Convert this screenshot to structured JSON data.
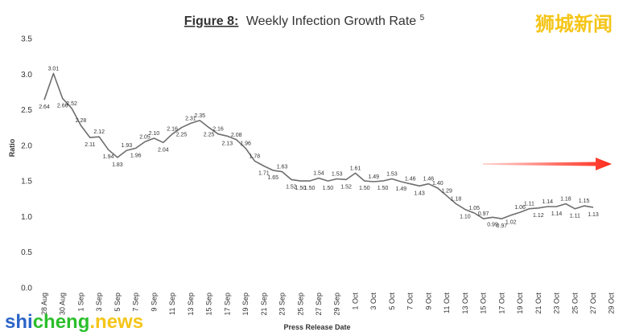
{
  "chart_data": {
    "type": "line",
    "title_prefix": "Figure 8:",
    "title_main": "Weekly Infection Growth Rate",
    "title_superscript": "5",
    "xlabel": "Press Release Date",
    "ylabel": "Ratio",
    "ylim": [
      0,
      3.5
    ],
    "yticks": [
      "0.0",
      "0.5",
      "1.0",
      "1.5",
      "2.0",
      "2.5",
      "3.0",
      "3.5"
    ],
    "x_tick_labels": [
      "28 Aug",
      "30 Aug",
      "1 Sep",
      "3 Sep",
      "5 Sep",
      "7 Sep",
      "9 Sep",
      "11 Sep",
      "13 Sep",
      "15 Sep",
      "17 Sep",
      "19 Sep",
      "21 Sep",
      "23 Sep",
      "25 Sep",
      "27 Sep",
      "29 Sep",
      "1 Oct",
      "3 Oct",
      "5 Oct",
      "7 Oct",
      "9 Oct",
      "11 Oct",
      "13 Oct",
      "15 Oct",
      "17 Oct",
      "19 Oct",
      "21 Oct",
      "23 Oct",
      "25 Oct",
      "27 Oct",
      "29 Oct"
    ],
    "x_start_date": "2021-08-28",
    "values": [
      2.64,
      3.01,
      2.66,
      2.52,
      2.28,
      2.11,
      2.12,
      1.94,
      1.83,
      1.93,
      1.96,
      2.05,
      2.1,
      2.04,
      2.16,
      2.25,
      2.31,
      2.35,
      2.25,
      2.16,
      2.13,
      2.08,
      1.96,
      1.78,
      1.71,
      1.65,
      1.63,
      1.52,
      1.5,
      1.5,
      1.54,
      1.5,
      1.53,
      1.52,
      1.61,
      1.5,
      1.49,
      1.5,
      1.53,
      1.49,
      1.46,
      1.43,
      1.46,
      1.4,
      1.29,
      1.18,
      1.1,
      1.05,
      0.97,
      0.99,
      0.97,
      1.02,
      1.06,
      1.11,
      1.12,
      1.14,
      1.14,
      1.18,
      1.11,
      1.15,
      1.13
    ],
    "data_labels": [
      "2.64",
      "3.01",
      "2.66",
      "2.52",
      "2.28",
      "2.11",
      "2.12",
      "1.94",
      "1.83",
      "1.93",
      "1.96",
      "2.05",
      "2.10",
      "2.04",
      "2.16",
      "2.25",
      "2.31",
      "2.35",
      "2.25",
      "2.16",
      "2.13",
      "2.08",
      "1.96",
      "1.78",
      "1.71",
      "1.65",
      "1.63",
      "1.52",
      "1.50",
      "1.50",
      "1.54",
      "1.50",
      "1.53",
      "1.52",
      "1.61",
      "1.50",
      "1.49",
      "1.50",
      "1.53",
      "1.49",
      "1.46",
      "1.43",
      "1.46",
      "1.40",
      "1.29",
      "1.18",
      "1.10",
      "1.05",
      "0.97",
      "0.99",
      "0.97",
      "1.02",
      "1.06",
      "1.11",
      "1.12",
      "1.14",
      "1.14",
      "1.18",
      "1.11",
      "1.15",
      "1.13"
    ],
    "label_positions": [
      "below",
      "above",
      "below",
      "above",
      "above",
      "below",
      "above",
      "below",
      "below",
      "above",
      "below",
      "above",
      "above",
      "below",
      "above",
      "below",
      "above",
      "above",
      "below",
      "above",
      "below",
      "above",
      "above",
      "above",
      "below",
      "below",
      "above",
      "below",
      "below",
      "below",
      "above",
      "below",
      "above",
      "below",
      "above",
      "below",
      "above",
      "below",
      "above",
      "below",
      "above",
      "below",
      "above",
      "above",
      "above",
      "above",
      "below",
      "above",
      "above",
      "below",
      "below",
      "below",
      "above",
      "above",
      "below",
      "above",
      "below",
      "above",
      "below",
      "above",
      "below"
    ],
    "line_color": "#6e6e6e",
    "grid": false,
    "annotation_arrow_color": "#ff2a1a"
  },
  "watermarks": {
    "top_right": "狮城新闻",
    "bottom_left_shi": "shi",
    "bottom_left_cheng": "cheng",
    "bottom_left_news": ".news",
    "top_right_color": "#f5c518",
    "bottom_blue": "#2b64c7",
    "bottom_green": "#2bbf2b",
    "bottom_yellow": "#f5c518"
  }
}
